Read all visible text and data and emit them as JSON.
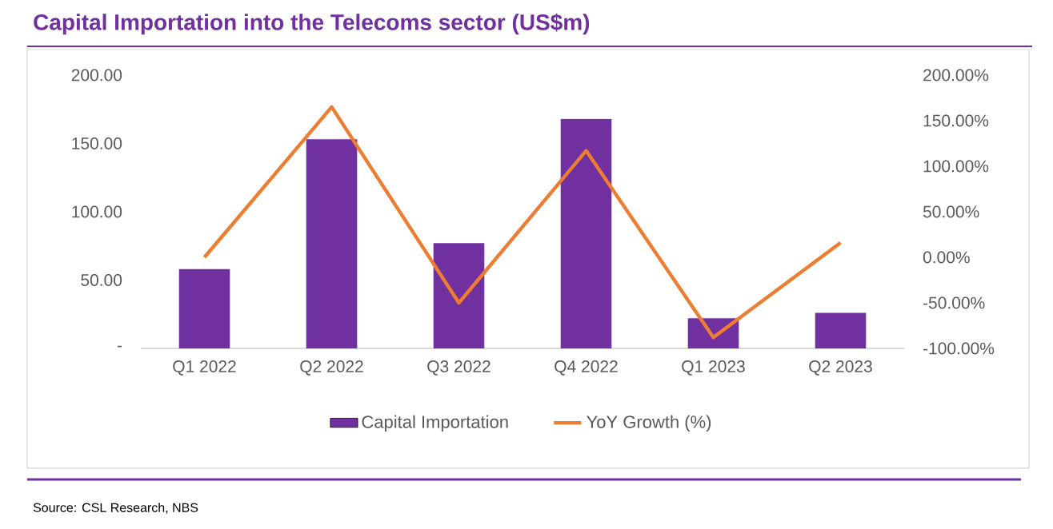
{
  "chart_data": {
    "type": "bar",
    "title": "Capital Importation into the Telecoms sector (US$m)",
    "categories": [
      "Q1 2022",
      "Q2 2022",
      "Q3 2022",
      "Q4 2022",
      "Q1 2023",
      "Q2 2023"
    ],
    "series": [
      {
        "name": "Capital Importation",
        "color": "#7030a0",
        "values": [
          58,
          153,
          77,
          168,
          22,
          26
        ]
      },
      {
        "name": "YoY Growth (%)",
        "type": "line",
        "axis": "y2",
        "color": "#ed7d31",
        "values": [
          0,
          165,
          -50,
          117,
          -88,
          16
        ]
      }
    ],
    "ylim": [
      0,
      200
    ],
    "yticks": [
      {
        "value": 0,
        "label": "-"
      },
      {
        "value": 50,
        "label": "50.00"
      },
      {
        "value": 100,
        "label": "100.00"
      },
      {
        "value": 150,
        "label": "150.00"
      },
      {
        "value": 200,
        "label": "200.00"
      }
    ],
    "y2lim": [
      -100,
      200
    ],
    "y2ticks": [
      {
        "value": -100,
        "label": "-100.00%"
      },
      {
        "value": -50,
        "label": "-50.00%"
      },
      {
        "value": 0,
        "label": "0.00%"
      },
      {
        "value": 50,
        "label": "50.00%"
      },
      {
        "value": 100,
        "label": "100.00%"
      },
      {
        "value": 150,
        "label": "150.00%"
      },
      {
        "value": 200,
        "label": "200.00%"
      }
    ],
    "legend": "bottom",
    "annotations": [
      "Source: CSL Research, NBS"
    ]
  }
}
